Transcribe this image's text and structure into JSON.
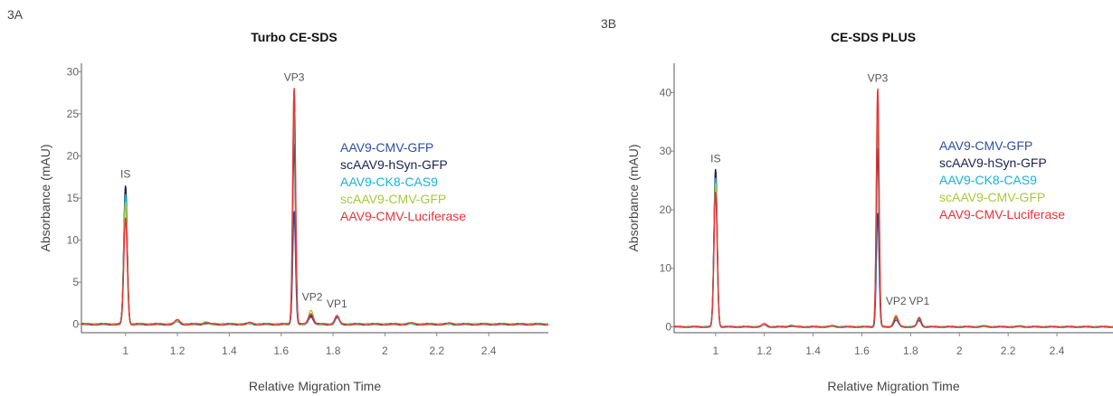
{
  "panels": {
    "a": {
      "label": "3A"
    },
    "b": {
      "label": "3B"
    }
  },
  "legend_entries": [
    {
      "name": "AAV9-CMV-GFP",
      "color": "#2e4fa3"
    },
    {
      "name": "scAAV9-hSyn-GFP",
      "color": "#1a2350"
    },
    {
      "name": "AAV9-CK8-CAS9",
      "color": "#18b2d8"
    },
    {
      "name": "scAAV9-CMV-GFP",
      "color": "#a8c93a"
    },
    {
      "name": "AAV9-CMV-Luciferase",
      "color": "#e8333a"
    }
  ],
  "chart_data": [
    {
      "type": "line",
      "title": "Turbo CE-SDS",
      "xlabel": "Relative Migration Time",
      "ylabel": "Absorbance (mAU)",
      "xlim": [
        0.83,
        2.63
      ],
      "ylim": [
        -1,
        31
      ],
      "xticks": [
        1,
        1.2,
        1.4,
        1.6,
        1.8,
        2,
        2.2,
        2.4
      ],
      "xtick_labels": [
        "1",
        "1.2",
        "1.4",
        "1.6",
        "1.8",
        "2",
        "2.2",
        "2.4"
      ],
      "yticks": [
        0,
        5,
        10,
        15,
        20,
        25,
        30
      ],
      "ytick_labels": [
        "0",
        "5",
        "10",
        "15",
        "20",
        "25",
        "30"
      ],
      "peak_labels": [
        {
          "text": "IS",
          "x": 1.0,
          "y": 17.2
        },
        {
          "text": "VP3",
          "x": 1.65,
          "y": 28.7
        },
        {
          "text": "VP2",
          "x": 1.72,
          "y": 2.6
        },
        {
          "text": "VP1",
          "x": 1.815,
          "y": 1.8
        }
      ],
      "series": [
        {
          "name": "AAV9-CMV-GFP",
          "color": "#2e4fa3",
          "peaks": [
            [
              1.0,
              16.2
            ],
            [
              1.65,
              13.5
            ],
            [
              1.715,
              0.9
            ],
            [
              1.815,
              0.8
            ]
          ]
        },
        {
          "name": "scAAV9-hSyn-GFP",
          "color": "#1a2350",
          "peaks": [
            [
              1.0,
              16.5
            ],
            [
              1.65,
              21.5
            ],
            [
              1.715,
              1.1
            ],
            [
              1.815,
              0.9
            ]
          ]
        },
        {
          "name": "AAV9-CK8-CAS9",
          "color": "#18b2d8",
          "peaks": [
            [
              1.0,
              15.5
            ],
            [
              1.65,
              24.6
            ],
            [
              1.715,
              1.2
            ],
            [
              1.815,
              1.0
            ]
          ]
        },
        {
          "name": "scAAV9-CMV-GFP",
          "color": "#a8c93a",
          "peaks": [
            [
              1.0,
              14.5
            ],
            [
              1.65,
              27.8
            ],
            [
              1.715,
              1.6
            ],
            [
              1.815,
              1.1
            ]
          ]
        },
        {
          "name": "AAV9-CMV-Luciferase",
          "color": "#e8333a",
          "peaks": [
            [
              1.0,
              12.6
            ],
            [
              1.65,
              28.2
            ],
            [
              1.715,
              1.3
            ],
            [
              1.815,
              1.0
            ]
          ]
        }
      ]
    },
    {
      "type": "line",
      "title": "CE-SDS PLUS",
      "xlabel": "Relative Migration Time",
      "ylabel": "Absorbance (mAU)",
      "xlim": [
        0.83,
        2.63
      ],
      "ylim": [
        -1,
        45
      ],
      "xticks": [
        1,
        1.2,
        1.4,
        1.6,
        1.8,
        2,
        2.2,
        2.4
      ],
      "xtick_labels": [
        "1",
        "1.2",
        "1.4",
        "1.6",
        "1.8",
        "2",
        "2.2",
        "2.4"
      ],
      "yticks": [
        0,
        10,
        20,
        30,
        40
      ],
      "ytick_labels": [
        "0",
        "10",
        "20",
        "30",
        "40"
      ],
      "peak_labels": [
        {
          "text": "IS",
          "x": 1.0,
          "y": 27.8
        },
        {
          "text": "VP3",
          "x": 1.665,
          "y": 41.5
        },
        {
          "text": "VP2",
          "x": 1.74,
          "y": 3.5
        },
        {
          "text": "VP1",
          "x": 1.835,
          "y": 3.5
        }
      ],
      "series": [
        {
          "name": "AAV9-CMV-GFP",
          "color": "#2e4fa3",
          "peaks": [
            [
              1.0,
              26.5
            ],
            [
              1.665,
              19.5
            ],
            [
              1.74,
              1.2
            ],
            [
              1.835,
              1.0
            ]
          ]
        },
        {
          "name": "scAAV9-hSyn-GFP",
          "color": "#1a2350",
          "peaks": [
            [
              1.0,
              27.0
            ],
            [
              1.665,
              30.5
            ],
            [
              1.74,
              1.5
            ],
            [
              1.835,
              1.3
            ]
          ]
        },
        {
          "name": "AAV9-CK8-CAS9",
          "color": "#18b2d8",
          "peaks": [
            [
              1.0,
              25.5
            ],
            [
              1.665,
              36.5
            ],
            [
              1.74,
              1.6
            ],
            [
              1.835,
              1.4
            ]
          ]
        },
        {
          "name": "scAAV9-CMV-GFP",
          "color": "#a8c93a",
          "peaks": [
            [
              1.0,
              24.5
            ],
            [
              1.665,
              39.5
            ],
            [
              1.74,
              2.1
            ],
            [
              1.835,
              1.6
            ]
          ]
        },
        {
          "name": "AAV9-CMV-Luciferase",
          "color": "#e8333a",
          "peaks": [
            [
              1.0,
              23.0
            ],
            [
              1.665,
              40.8
            ],
            [
              1.74,
              1.7
            ],
            [
              1.835,
              1.5
            ]
          ]
        }
      ]
    }
  ]
}
